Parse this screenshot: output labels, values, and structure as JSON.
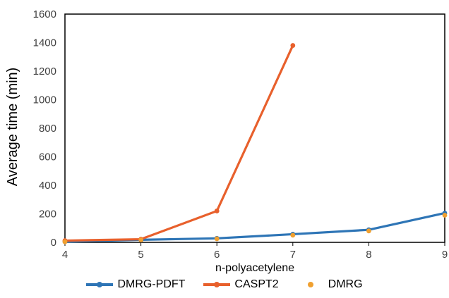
{
  "chart_data": {
    "type": "line",
    "xlabel": "n-polyacetylene",
    "ylabel": "Average time (min)",
    "x": [
      4,
      5,
      6,
      7,
      8,
      9
    ],
    "xlim": [
      4,
      9
    ],
    "ylim": [
      0,
      1600
    ],
    "x_ticks": [
      "4",
      "5",
      "6",
      "7",
      "8",
      "9"
    ],
    "y_ticks": [
      "0",
      "200",
      "400",
      "600",
      "800",
      "1000",
      "1200",
      "1400",
      "1600"
    ],
    "grid": false,
    "legend_position": "bottom",
    "series": [
      {
        "name": "DMRG-PDFT",
        "color": "#2E75B6",
        "style": "line",
        "x": [
          4,
          5,
          6,
          7,
          8,
          9
        ],
        "values": [
          5,
          18,
          28,
          57,
          88,
          205
        ]
      },
      {
        "name": "CASPT2",
        "color": "#E8602C",
        "style": "line",
        "x": [
          4,
          5,
          6,
          7
        ],
        "values": [
          12,
          22,
          220,
          1380
        ]
      },
      {
        "name": "DMRG",
        "color": "#F0A030",
        "style": "markers",
        "x": [
          4,
          5,
          6,
          7,
          8,
          9
        ],
        "values": [
          4,
          17,
          25,
          50,
          80,
          190
        ]
      }
    ]
  }
}
